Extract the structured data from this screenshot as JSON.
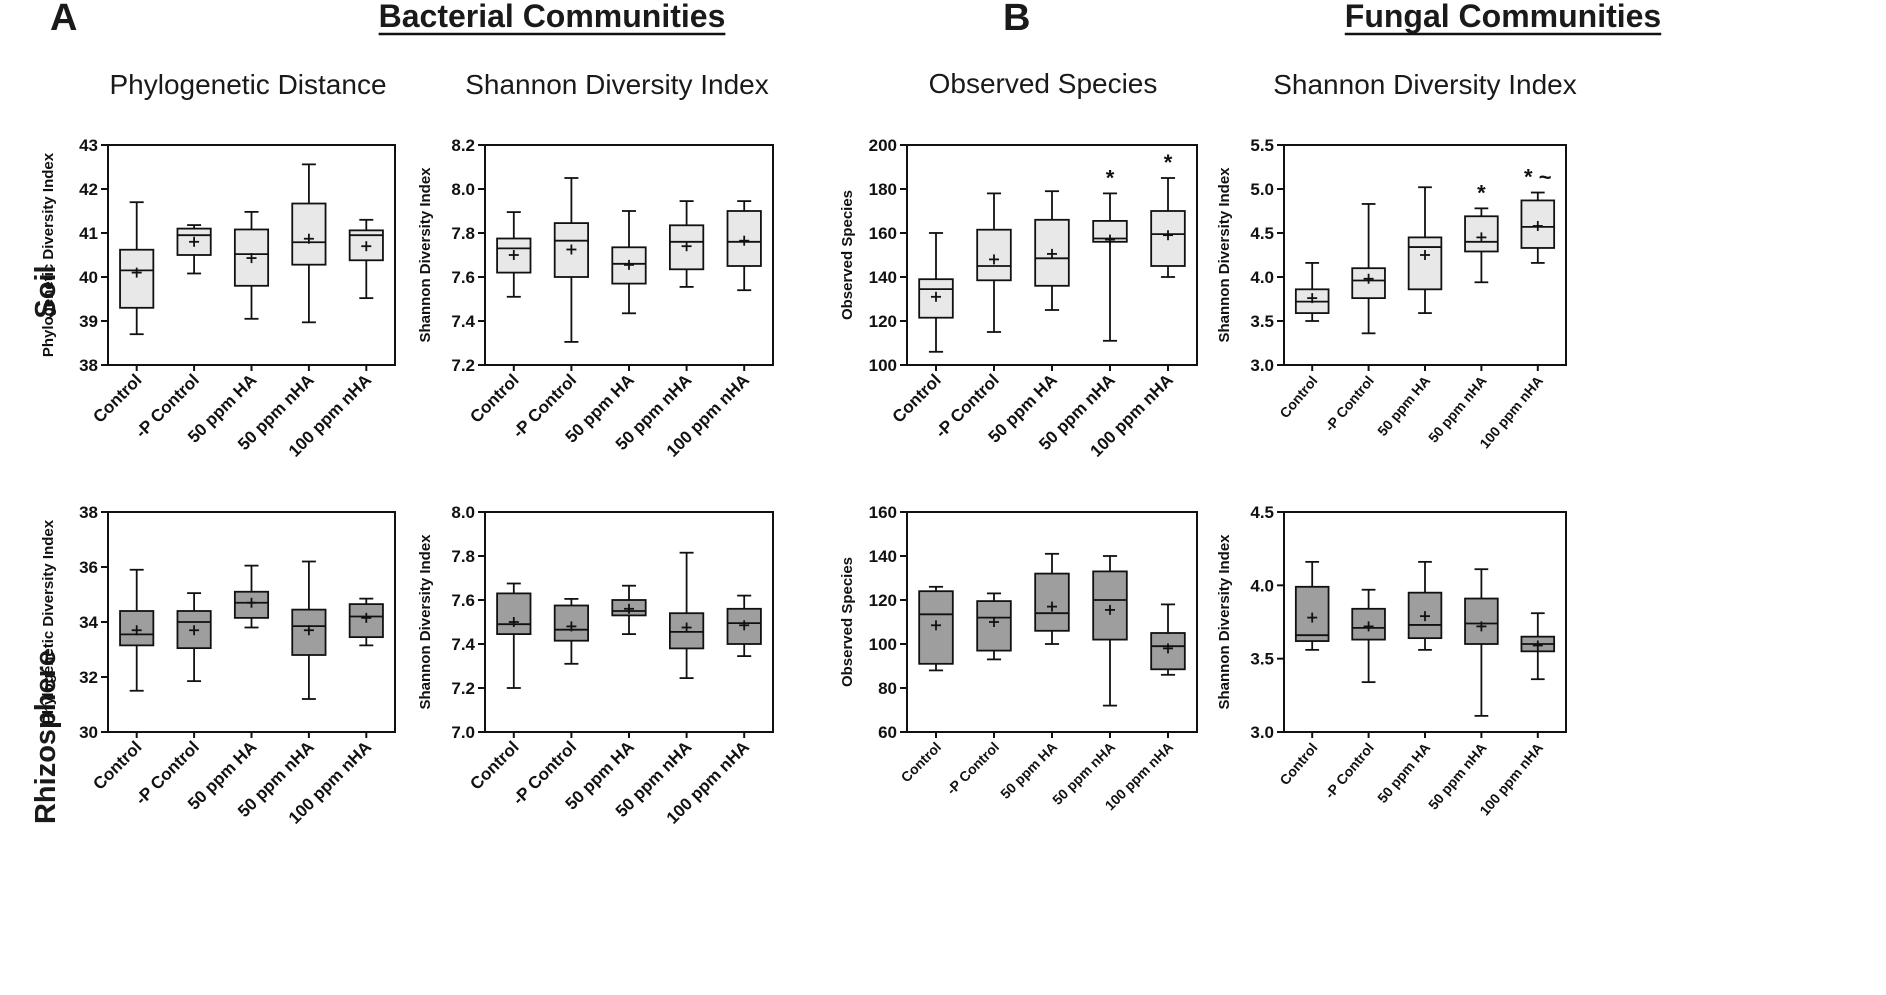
{
  "figure": {
    "panel_a": "A",
    "panel_b": "B",
    "section_a_title": "Bacterial Communities",
    "section_b_title": "Fungal Communities",
    "row_labels": [
      "Soil",
      "Rhizosphere"
    ],
    "soil_box_fill": "#e8e8e8",
    "rhizosphere_box_fill": "#9e9e9e",
    "line_color": "#111111"
  },
  "chart_data": [
    {
      "id": "bact-soil-pd",
      "type": "boxplot",
      "title": "Phylogenetic Distance",
      "ylabel": "Phylogenetic Diversity Index",
      "categories": [
        "Control",
        "-P Control",
        "50 ppm HA",
        "50 ppm nHA",
        "100 ppm nHA"
      ],
      "ylim": [
        38,
        43
      ],
      "yticks": [
        "38",
        "39",
        "40",
        "41",
        "42",
        "43"
      ],
      "series": [
        {
          "min": 38.7,
          "q1": 39.3,
          "median": 40.15,
          "q3": 40.62,
          "max": 41.7,
          "mean": 40.1
        },
        {
          "min": 40.08,
          "q1": 40.5,
          "median": 40.95,
          "q3": 41.1,
          "max": 41.18,
          "mean": 40.8
        },
        {
          "min": 39.05,
          "q1": 39.8,
          "median": 40.52,
          "q3": 41.08,
          "max": 41.48,
          "mean": 40.43
        },
        {
          "min": 38.97,
          "q1": 40.28,
          "median": 40.79,
          "q3": 41.67,
          "max": 42.56,
          "mean": 40.87
        },
        {
          "min": 39.52,
          "q1": 40.38,
          "median": 40.95,
          "q3": 41.06,
          "max": 41.3,
          "mean": 40.7
        }
      ],
      "sig": [
        "",
        "",
        "",
        "",
        ""
      ]
    },
    {
      "id": "bact-soil-shannon",
      "type": "boxplot",
      "title": "Shannon Diversity Index",
      "ylabel": "Shannon Diversity Index",
      "categories": [
        "Control",
        "-P Control",
        "50 ppm HA",
        "50 ppm nHA",
        "100 ppm nHA"
      ],
      "ylim": [
        7.2,
        8.2
      ],
      "yticks": [
        "7.2",
        "7.4",
        "7.6",
        "7.8",
        "8.0",
        "8.2"
      ],
      "series": [
        {
          "min": 7.51,
          "q1": 7.62,
          "median": 7.73,
          "q3": 7.775,
          "max": 7.895,
          "mean": 7.7
        },
        {
          "min": 7.305,
          "q1": 7.6,
          "median": 7.765,
          "q3": 7.845,
          "max": 8.05,
          "mean": 7.725
        },
        {
          "min": 7.435,
          "q1": 7.57,
          "median": 7.66,
          "q3": 7.735,
          "max": 7.9,
          "mean": 7.655
        },
        {
          "min": 7.555,
          "q1": 7.635,
          "median": 7.76,
          "q3": 7.835,
          "max": 7.945,
          "mean": 7.74
        },
        {
          "min": 7.54,
          "q1": 7.65,
          "median": 7.76,
          "q3": 7.9,
          "max": 7.945,
          "mean": 7.765
        }
      ],
      "sig": [
        "",
        "",
        "",
        "",
        ""
      ]
    },
    {
      "id": "fung-soil-obs",
      "type": "boxplot",
      "title": "Observed Species",
      "ylabel": "Observed Species",
      "categories": [
        "Control",
        "-P Control",
        "50 ppm HA",
        "50 ppm nHA",
        "100 ppm nHA"
      ],
      "ylim": [
        100,
        200
      ],
      "yticks": [
        "100",
        "120",
        "140",
        "160",
        "180",
        "200"
      ],
      "series": [
        {
          "min": 106,
          "q1": 121.5,
          "median": 134.5,
          "q3": 139,
          "max": 160,
          "mean": 131
        },
        {
          "min": 115,
          "q1": 138.5,
          "median": 145,
          "q3": 161.5,
          "max": 178,
          "mean": 148
        },
        {
          "min": 125,
          "q1": 136,
          "median": 148.5,
          "q3": 166,
          "max": 179,
          "mean": 150.5
        },
        {
          "min": 111,
          "q1": 156,
          "median": 157.5,
          "q3": 165.5,
          "max": 178,
          "mean": 157
        },
        {
          "min": 140,
          "q1": 145,
          "median": 159.5,
          "q3": 170,
          "max": 185,
          "mean": 159
        }
      ],
      "sig": [
        "",
        "",
        "",
        "*",
        "*"
      ]
    },
    {
      "id": "fung-soil-shannon",
      "type": "boxplot",
      "title": "Shannon Diversity Index",
      "ylabel": "Shannon Diversity Index",
      "categories": [
        "Control",
        "-P Control",
        "50 ppm HA",
        "50 ppm nHA",
        "100 ppm nHA"
      ],
      "ylim": [
        3.0,
        5.5
      ],
      "yticks": [
        "3.0",
        "3.5",
        "4.0",
        "4.5",
        "5.0",
        "5.5"
      ],
      "series": [
        {
          "min": 3.5,
          "q1": 3.59,
          "median": 3.72,
          "q3": 3.86,
          "max": 4.16,
          "mean": 3.76
        },
        {
          "min": 3.36,
          "q1": 3.76,
          "median": 3.96,
          "q3": 4.1,
          "max": 4.83,
          "mean": 3.98
        },
        {
          "min": 3.59,
          "q1": 3.86,
          "median": 4.34,
          "q3": 4.45,
          "max": 5.02,
          "mean": 4.25
        },
        {
          "min": 3.94,
          "q1": 4.29,
          "median": 4.4,
          "q3": 4.69,
          "max": 4.78,
          "mean": 4.45
        },
        {
          "min": 4.16,
          "q1": 4.33,
          "median": 4.57,
          "q3": 4.87,
          "max": 4.96,
          "mean": 4.58
        }
      ],
      "sig": [
        "",
        "",
        "",
        "*",
        "* ~"
      ]
    },
    {
      "id": "bact-rhizo-pd",
      "type": "boxplot",
      "title": "",
      "ylabel": "Phylogenetic Diversity Index",
      "categories": [
        "Control",
        "-P Control",
        "50 ppm HA",
        "50 ppm nHA",
        "100 ppm nHA"
      ],
      "ylim": [
        30,
        38
      ],
      "yticks": [
        "30",
        "32",
        "34",
        "36",
        "38"
      ],
      "series": [
        {
          "min": 31.5,
          "q1": 33.15,
          "median": 33.55,
          "q3": 34.4,
          "max": 35.9,
          "mean": 33.7
        },
        {
          "min": 31.85,
          "q1": 33.05,
          "median": 34.0,
          "q3": 34.4,
          "max": 35.05,
          "mean": 33.7
        },
        {
          "min": 33.8,
          "q1": 34.15,
          "median": 34.7,
          "q3": 35.1,
          "max": 36.05,
          "mean": 34.7
        },
        {
          "min": 31.2,
          "q1": 32.8,
          "median": 33.85,
          "q3": 34.45,
          "max": 36.2,
          "mean": 33.7
        },
        {
          "min": 33.15,
          "q1": 33.45,
          "median": 34.2,
          "q3": 34.65,
          "max": 34.85,
          "mean": 34.15
        }
      ],
      "sig": [
        "",
        "",
        "",
        "",
        ""
      ]
    },
    {
      "id": "bact-rhizo-shannon",
      "type": "boxplot",
      "title": "",
      "ylabel": "Shannon Diversity Index",
      "categories": [
        "Control",
        "-P Control",
        "50 ppm HA",
        "50 ppm nHA",
        "100 ppm nHA"
      ],
      "ylim": [
        7.0,
        8.0
      ],
      "yticks": [
        "7.0",
        "7.2",
        "7.4",
        "7.6",
        "7.8",
        "8.0"
      ],
      "series": [
        {
          "min": 7.2,
          "q1": 7.445,
          "median": 7.49,
          "q3": 7.63,
          "max": 7.675,
          "mean": 7.5
        },
        {
          "min": 7.31,
          "q1": 7.415,
          "median": 7.465,
          "q3": 7.575,
          "max": 7.605,
          "mean": 7.48
        },
        {
          "min": 7.445,
          "q1": 7.53,
          "median": 7.55,
          "q3": 7.6,
          "max": 7.665,
          "mean": 7.56
        },
        {
          "min": 7.245,
          "q1": 7.38,
          "median": 7.455,
          "q3": 7.54,
          "max": 7.815,
          "mean": 7.475
        },
        {
          "min": 7.345,
          "q1": 7.4,
          "median": 7.495,
          "q3": 7.56,
          "max": 7.62,
          "mean": 7.485
        }
      ],
      "sig": [
        "",
        "",
        "",
        "",
        ""
      ]
    },
    {
      "id": "fung-rhizo-obs",
      "type": "boxplot",
      "title": "",
      "ylabel": "Observed Species",
      "categories": [
        "Control",
        "-P Control",
        "50 ppm HA",
        "50 ppm nHA",
        "100 ppm nHA"
      ],
      "ylim": [
        60,
        160
      ],
      "yticks": [
        "60",
        "80",
        "100",
        "120",
        "140",
        "160"
      ],
      "series": [
        {
          "min": 88,
          "q1": 91,
          "median": 113.5,
          "q3": 124,
          "max": 126,
          "mean": 108.5
        },
        {
          "min": 93,
          "q1": 97,
          "median": 112,
          "q3": 119.5,
          "max": 123,
          "mean": 110
        },
        {
          "min": 100,
          "q1": 106,
          "median": 114,
          "q3": 132,
          "max": 141,
          "mean": 117
        },
        {
          "min": 72,
          "q1": 102,
          "median": 120,
          "q3": 133,
          "max": 140,
          "mean": 115.5
        },
        {
          "min": 86,
          "q1": 88.5,
          "median": 99,
          "q3": 105,
          "max": 118,
          "mean": 98
        }
      ],
      "sig": [
        "",
        "",
        "",
        "",
        ""
      ]
    },
    {
      "id": "fung-rhizo-shannon",
      "type": "boxplot",
      "title": "",
      "ylabel": "Shannon Diversity Index",
      "categories": [
        "Control",
        "-P Control",
        "50 ppm HA",
        "50 ppm nHA",
        "100 ppm nHA"
      ],
      "ylim": [
        3.0,
        4.5
      ],
      "yticks": [
        "3.0",
        "3.5",
        "4.0",
        "4.5"
      ],
      "series": [
        {
          "min": 3.56,
          "q1": 3.62,
          "median": 3.66,
          "q3": 3.99,
          "max": 4.16,
          "mean": 3.78
        },
        {
          "min": 3.34,
          "q1": 3.63,
          "median": 3.71,
          "q3": 3.84,
          "max": 3.97,
          "mean": 3.72
        },
        {
          "min": 3.56,
          "q1": 3.64,
          "median": 3.73,
          "q3": 3.95,
          "max": 4.16,
          "mean": 3.79
        },
        {
          "min": 3.11,
          "q1": 3.6,
          "median": 3.74,
          "q3": 3.91,
          "max": 4.11,
          "mean": 3.72
        },
        {
          "min": 3.36,
          "q1": 3.55,
          "median": 3.6,
          "q3": 3.65,
          "max": 3.81,
          "mean": 3.59
        }
      ],
      "sig": [
        "",
        "",
        "",
        "",
        ""
      ]
    }
  ]
}
